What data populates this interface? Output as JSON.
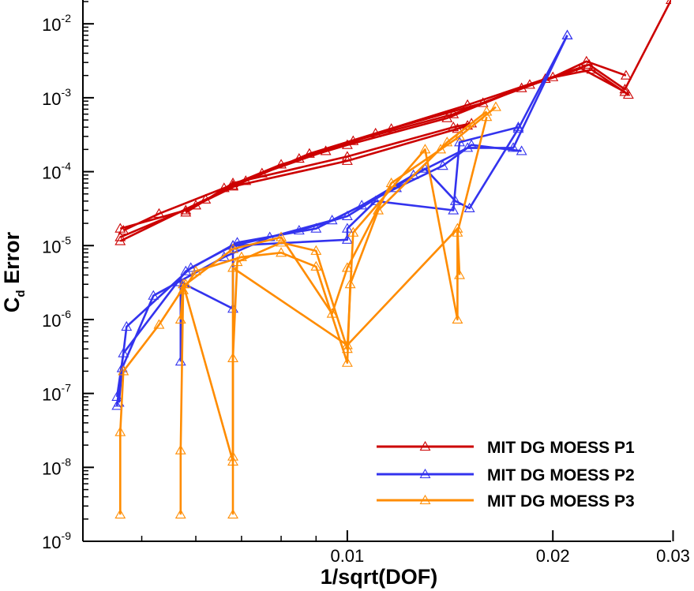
{
  "chart_data": {
    "type": "line",
    "xlabel": "1/sqrt(DOF)",
    "ylabel_main": "C",
    "ylabel_sub": "d",
    "ylabel_rest": " Error",
    "xscale": "log",
    "yscale": "log",
    "xlim": [
      0.0041,
      0.0298
    ],
    "ylim": [
      1e-09,
      0.021
    ],
    "x_ticks": [
      {
        "value": 0.01,
        "label": "0.01"
      },
      {
        "value": 0.02,
        "label": "0.02"
      },
      {
        "value": 0.03,
        "label": "0.03"
      }
    ],
    "y_ticks": [
      {
        "value": 1e-09,
        "base": "10",
        "exp": "-9"
      },
      {
        "value": 1e-08,
        "base": "10",
        "exp": "-8"
      },
      {
        "value": 1e-07,
        "base": "10",
        "exp": "-7"
      },
      {
        "value": 1e-06,
        "base": "10",
        "exp": "-6"
      },
      {
        "value": 1e-05,
        "base": "10",
        "exp": "-5"
      },
      {
        "value": 0.0001,
        "base": "10",
        "exp": "-4"
      },
      {
        "value": 0.001,
        "base": "10",
        "exp": "-3"
      },
      {
        "value": 0.01,
        "base": "10",
        "exp": "-2"
      }
    ],
    "legend_position": "bottom-right",
    "grid": false,
    "series": [
      {
        "name": "MIT DG MOESS P1",
        "color": "#cc0000",
        "lines": [
          [
            [
              0.00465,
              1.7e-05
            ],
            [
              0.0058,
              3e-05
            ],
            [
              0.0068,
              6.5e-05
            ],
            [
              0.0085,
              0.00015
            ],
            [
              0.0102,
              0.00026
            ],
            [
              0.0143,
              0.0006
            ],
            [
              0.0185,
              0.0015
            ],
            [
              0.0226,
              0.0028
            ],
            [
              0.0255,
              0.0013
            ],
            [
              0.0298,
              0.021
            ]
          ],
          [
            [
              0.00465,
              1.3e-05
            ],
            [
              0.006,
              3.5e-05
            ],
            [
              0.0071,
              7.5e-05
            ],
            [
              0.0088,
              0.000175
            ],
            [
              0.011,
              0.00033
            ],
            [
              0.015,
              0.0008
            ],
            [
              0.0195,
              0.0018
            ],
            [
              0.0228,
              0.0024
            ],
            [
              0.0258,
              0.0011
            ]
          ],
          [
            [
              0.00465,
              1.15e-05
            ],
            [
              0.0062,
              4.2e-05
            ],
            [
              0.0075,
              9.5e-05
            ],
            [
              0.0093,
              0.00019
            ],
            [
              0.0116,
              0.00038
            ],
            [
              0.0158,
              0.00085
            ],
            [
              0.02,
              0.0019
            ],
            [
              0.0224,
              0.0031
            ],
            [
              0.0256,
              0.002
            ]
          ],
          [
            [
              0.0047,
              1.6e-05
            ],
            [
              0.0053,
              2.7e-05
            ],
            [
              0.0066,
              6e-05
            ],
            [
              0.008,
              0.000125
            ],
            [
              0.01,
              0.00023
            ],
            [
              0.014,
              0.00053
            ],
            [
              0.018,
              0.00135
            ],
            [
              0.022,
              0.0025
            ],
            [
              0.0255,
              0.0012
            ]
          ],
          [
            [
              0.0058,
              2.8e-05
            ],
            [
              0.0068,
              7e-05
            ],
            [
              0.01,
              0.00016
            ],
            [
              0.0143,
              0.0004
            ],
            [
              0.0152,
              0.00045
            ]
          ],
          [
            [
              0.0068,
              6.3e-05
            ],
            [
              0.01,
              0.00014
            ],
            [
              0.0145,
              0.00038
            ],
            [
              0.015,
              0.00042
            ]
          ]
        ]
      },
      {
        "name": "MIT DG MOESS P2",
        "color": "#3333ee",
        "lines": [
          [
            [
              0.0046,
              6.8e-08
            ],
            [
              0.00475,
              8e-07
            ],
            [
              0.0059,
              5e-06
            ],
            [
              0.0068,
              1e-05
            ],
            [
              0.0085,
              1.6e-05
            ],
            [
              0.01,
              2.5e-05
            ],
            [
              0.013,
              0.00011
            ],
            [
              0.0144,
              4e-05
            ],
            [
              0.0151,
              3.2e-05
            ],
            [
              0.0178,
              0.00038
            ],
            [
              0.021,
              0.007
            ]
          ],
          [
            [
              0.0046,
              9e-08
            ],
            [
              0.0047,
              3.5e-07
            ],
            [
              0.0058,
              4.5e-06
            ],
            [
              0.0069,
              1.1e-05
            ],
            [
              0.009,
              1.7e-05
            ],
            [
              0.0105,
              3.5e-05
            ],
            [
              0.0125,
              9e-05
            ],
            [
              0.015,
              0.00021
            ],
            [
              0.0175,
              0.00021
            ],
            [
              0.021,
              0.007
            ]
          ],
          [
            [
              0.00463,
              7.5e-08
            ],
            [
              0.00468,
              2.2e-07
            ],
            [
              0.0052,
              2.1e-06
            ],
            [
              0.0066,
              7e-06
            ],
            [
              0.0077,
              1.3e-05
            ],
            [
              0.0095,
              2.2e-05
            ],
            [
              0.0118,
              6e-05
            ],
            [
              0.0138,
              0.00012
            ],
            [
              0.0152,
              0.00023
            ],
            [
              0.018,
              0.00019
            ]
          ],
          [
            [
              0.0057,
              2.7e-07
            ],
            [
              0.0057,
              3.2e-06
            ],
            [
              0.0068,
              1.4e-06
            ],
            [
              0.0068,
              1e-05
            ],
            [
              0.01,
              1.2e-05
            ],
            [
              0.01,
              1.7e-05
            ],
            [
              0.011,
              4e-05
            ],
            [
              0.0143,
              3e-05
            ],
            [
              0.0146,
              0.00025
            ],
            [
              0.0178,
              0.0004
            ]
          ]
        ]
      },
      {
        "name": "MIT DG MOESS P3",
        "color": "#ff8c00",
        "lines": [
          [
            [
              0.00465,
              2.3e-09
            ],
            [
              0.00465,
              3e-08
            ],
            [
              0.0047,
              2e-07
            ],
            [
              0.0053,
              8.5e-07
            ],
            [
              0.0058,
              3e-06
            ],
            [
              0.0068,
              9e-06
            ],
            [
              0.008,
              1.3e-05
            ],
            [
              0.0095,
              1.2e-06
            ],
            [
              0.01,
              5e-06
            ],
            [
              0.0116,
              7e-05
            ],
            [
              0.0137,
              0.0002
            ],
            [
              0.0146,
              0.0003
            ],
            [
              0.0165,
              0.00075
            ]
          ],
          [
            [
              0.0057,
              2.3e-09
            ],
            [
              0.0057,
              1.7e-08
            ],
            [
              0.00575,
              2.5e-06
            ],
            [
              0.006,
              4.5e-06
            ],
            [
              0.007,
              7e-06
            ],
            [
              0.008,
              8e-06
            ],
            [
              0.009,
              5.2e-06
            ],
            [
              0.01,
              2.6e-07
            ],
            [
              0.0101,
              3e-06
            ],
            [
              0.0111,
              3e-05
            ],
            [
              0.014,
              0.00025
            ],
            [
              0.016,
              0.00065
            ]
          ],
          [
            [
              0.0068,
              2.3e-09
            ],
            [
              0.0068,
              1.4e-08
            ],
            [
              0.0068,
              3e-07
            ],
            [
              0.0069,
              6e-06
            ],
            [
              0.008,
              1.1e-05
            ],
            [
              0.009,
              8.5e-06
            ],
            [
              0.01,
              4e-07
            ],
            [
              0.0102,
              1.5e-05
            ],
            [
              0.013,
              0.0002
            ],
            [
              0.0145,
              1e-06
            ],
            [
              0.0145,
              1.5e-05
            ],
            [
              0.016,
              0.00055
            ]
          ],
          [
            [
              0.0057,
              1e-06
            ],
            [
              0.00575,
              3e-06
            ],
            [
              0.0068,
              1.2e-08
            ],
            [
              0.0068,
              5e-06
            ],
            [
              0.01,
              4.5e-07
            ],
            [
              0.0145,
              1.7e-05
            ],
            [
              0.0146,
              4e-06
            ]
          ]
        ]
      }
    ]
  }
}
